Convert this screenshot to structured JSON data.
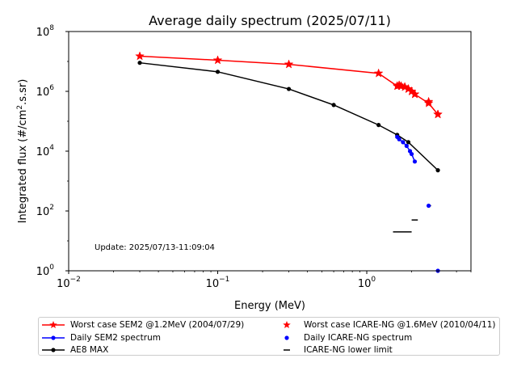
{
  "chart_data": {
    "type": "scatter",
    "title": "Average daily spectrum (2025/07/11)",
    "xlabel": "Energy (MeV)",
    "ylabel_prefix": "Integrated flux (#/cm",
    "ylabel_sup": "2",
    "ylabel_suffix": ".s.sr)",
    "x_scale": "log",
    "y_scale": "log",
    "xlim": [
      0.01,
      5
    ],
    "ylim": [
      1,
      100000000
    ],
    "x_ticks": [
      {
        "value": 0.01,
        "base": "10",
        "exp": "−2"
      },
      {
        "value": 0.1,
        "base": "10",
        "exp": "−1"
      },
      {
        "value": 1,
        "base": "10",
        "exp": "0"
      }
    ],
    "y_ticks": [
      {
        "value": 1,
        "base": "10",
        "exp": "0"
      },
      {
        "value": 100,
        "base": "10",
        "exp": "2"
      },
      {
        "value": 10000,
        "base": "10",
        "exp": "4"
      },
      {
        "value": 1000000,
        "base": "10",
        "exp": "6"
      },
      {
        "value": 100000000,
        "base": "10",
        "exp": "8"
      }
    ],
    "grid": false,
    "legend_placement": "below plot",
    "annotation": "Update: 2025/07/13-11:09:04",
    "series": [
      {
        "name": "Worst case SEM2 @1.2MeV (2004/07/29)",
        "color": "#ff0000",
        "style": "line-star",
        "x": [
          0.03,
          0.1,
          0.3,
          1.2,
          1.6,
          1.65,
          1.7,
          1.8,
          1.9,
          2.0,
          2.1,
          2.6,
          3.0
        ],
        "y": [
          15000000,
          11000000,
          8000000,
          4000000,
          1500000,
          1600000,
          1500000,
          1400000,
          1200000,
          1000000,
          800000,
          400000,
          170000
        ]
      },
      {
        "name": "Worst case ICARE-NG @1.6MeV (2010/04/11)",
        "color": "#ff0000",
        "style": "star",
        "x": [
          1.6,
          1.65,
          1.7,
          1.8,
          1.9,
          2.0,
          2.1,
          2.6,
          3.0
        ],
        "y": [
          1500000,
          1600000,
          1500000,
          1400000,
          1200000,
          1000000,
          800000,
          450000,
          170000
        ]
      },
      {
        "name": "Daily SEM2 spectrum",
        "color": "#0000ff",
        "style": "line-dot",
        "x": [
          1.6,
          1.65,
          1.75,
          1.85,
          1.95,
          2.0,
          2.1
        ],
        "y": [
          30000,
          25000,
          20000,
          15000,
          10000,
          8000,
          4500
        ]
      },
      {
        "name": "Daily ICARE-NG spectrum",
        "color": "#0000ff",
        "style": "dot",
        "x": [
          2.6,
          3.0
        ],
        "y": [
          150,
          1
        ]
      },
      {
        "name": "AE8 MAX",
        "color": "#000000",
        "style": "line-dot",
        "x": [
          0.03,
          0.1,
          0.3,
          0.6,
          1.2,
          1.6,
          1.9,
          3.0
        ],
        "y": [
          9000000,
          4500000,
          1200000,
          350000,
          75000,
          35000,
          20000,
          2300
        ]
      },
      {
        "name": "ICARE-NG lower limit",
        "color": "#000000",
        "style": "hline",
        "x": [
          1.5,
          2.0,
          2.6
        ],
        "x_end": [
          2.0,
          2.2,
          2.7
        ],
        "y": [
          20,
          50,
          150
        ]
      }
    ],
    "legend_order": [
      0,
      2,
      4,
      1,
      3,
      5
    ]
  }
}
